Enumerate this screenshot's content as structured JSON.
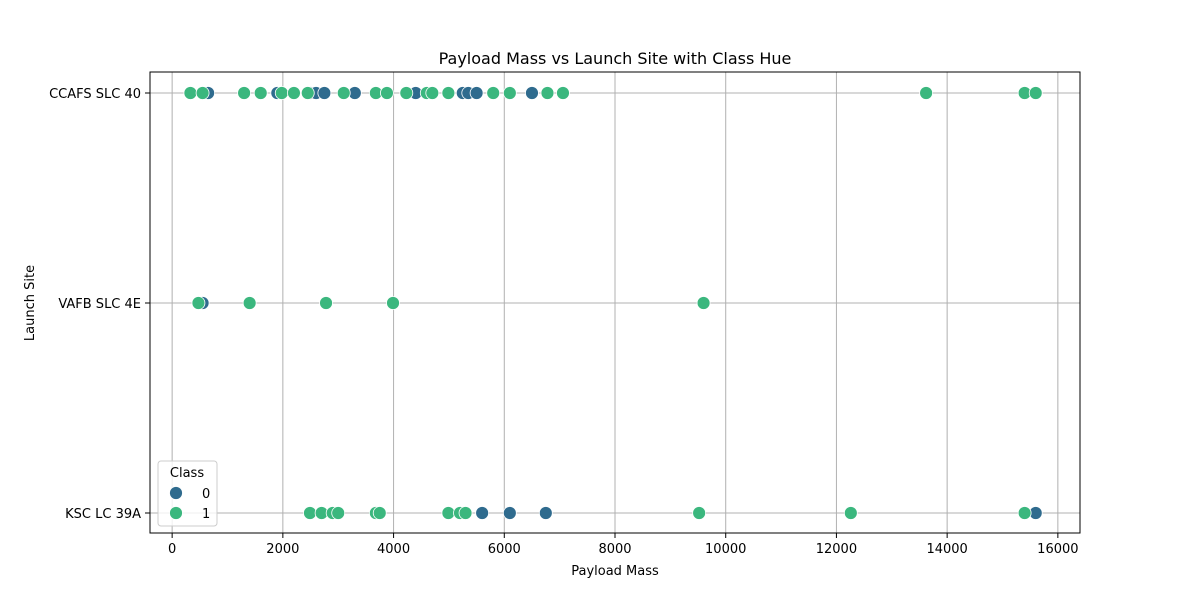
{
  "chart_data": {
    "type": "scatter",
    "title": "Payload Mass vs Launch Site with Class Hue",
    "xlabel": "Payload Mass",
    "ylabel": "Launch Site",
    "xlim": [
      -400,
      16400
    ],
    "x_ticks": [
      0,
      2000,
      4000,
      6000,
      8000,
      10000,
      12000,
      14000,
      16000
    ],
    "x_tick_labels": [
      "0",
      "2000",
      "4000",
      "6000",
      "8000",
      "10000",
      "12000",
      "14000",
      "16000"
    ],
    "categories": [
      "CCAFS SLC 40",
      "VAFB SLC 4E",
      "KSC LC 39A"
    ],
    "grid": true,
    "legend": {
      "title": "Class",
      "placement": "lower-left",
      "entries": [
        {
          "label": "0",
          "color": "#2f6b8e"
        },
        {
          "label": "1",
          "color": "#3bb77e"
        }
      ]
    },
    "series": [
      {
        "name": "0",
        "color": "#2f6b8e",
        "points": [
          {
            "x": 650,
            "site": "CCAFS SLC 40"
          },
          {
            "x": 1900,
            "site": "CCAFS SLC 40"
          },
          {
            "x": 2500,
            "site": "CCAFS SLC 40"
          },
          {
            "x": 2600,
            "site": "CCAFS SLC 40"
          },
          {
            "x": 2750,
            "site": "CCAFS SLC 40"
          },
          {
            "x": 3300,
            "site": "CCAFS SLC 40"
          },
          {
            "x": 4400,
            "site": "CCAFS SLC 40"
          },
          {
            "x": 5250,
            "site": "CCAFS SLC 40"
          },
          {
            "x": 5350,
            "site": "CCAFS SLC 40"
          },
          {
            "x": 5500,
            "site": "CCAFS SLC 40"
          },
          {
            "x": 6500,
            "site": "CCAFS SLC 40"
          },
          {
            "x": 550,
            "site": "VAFB SLC 4E"
          },
          {
            "x": 5600,
            "site": "KSC LC 39A"
          },
          {
            "x": 6100,
            "site": "KSC LC 39A"
          },
          {
            "x": 6750,
            "site": "KSC LC 39A"
          },
          {
            "x": 15600,
            "site": "KSC LC 39A"
          }
        ]
      },
      {
        "name": "1",
        "color": "#3bb77e",
        "points": [
          {
            "x": 330,
            "site": "CCAFS SLC 40"
          },
          {
            "x": 550,
            "site": "CCAFS SLC 40"
          },
          {
            "x": 1300,
            "site": "CCAFS SLC 40"
          },
          {
            "x": 1600,
            "site": "CCAFS SLC 40"
          },
          {
            "x": 1980,
            "site": "CCAFS SLC 40"
          },
          {
            "x": 2200,
            "site": "CCAFS SLC 40"
          },
          {
            "x": 2450,
            "site": "CCAFS SLC 40"
          },
          {
            "x": 3100,
            "site": "CCAFS SLC 40"
          },
          {
            "x": 3680,
            "site": "CCAFS SLC 40"
          },
          {
            "x": 3880,
            "site": "CCAFS SLC 40"
          },
          {
            "x": 4230,
            "site": "CCAFS SLC 40"
          },
          {
            "x": 4600,
            "site": "CCAFS SLC 40"
          },
          {
            "x": 4700,
            "site": "CCAFS SLC 40"
          },
          {
            "x": 4990,
            "site": "CCAFS SLC 40"
          },
          {
            "x": 5800,
            "site": "CCAFS SLC 40"
          },
          {
            "x": 6100,
            "site": "CCAFS SLC 40"
          },
          {
            "x": 6780,
            "site": "CCAFS SLC 40"
          },
          {
            "x": 7060,
            "site": "CCAFS SLC 40"
          },
          {
            "x": 13620,
            "site": "CCAFS SLC 40"
          },
          {
            "x": 15400,
            "site": "CCAFS SLC 40"
          },
          {
            "x": 15600,
            "site": "CCAFS SLC 40"
          },
          {
            "x": 475,
            "site": "VAFB SLC 4E"
          },
          {
            "x": 1400,
            "site": "VAFB SLC 4E"
          },
          {
            "x": 2780,
            "site": "VAFB SLC 4E"
          },
          {
            "x": 3990,
            "site": "VAFB SLC 4E"
          },
          {
            "x": 9600,
            "site": "VAFB SLC 4E"
          },
          {
            "x": 2490,
            "site": "KSC LC 39A"
          },
          {
            "x": 2700,
            "site": "KSC LC 39A"
          },
          {
            "x": 2900,
            "site": "KSC LC 39A"
          },
          {
            "x": 3000,
            "site": "KSC LC 39A"
          },
          {
            "x": 3680,
            "site": "KSC LC 39A"
          },
          {
            "x": 3750,
            "site": "KSC LC 39A"
          },
          {
            "x": 4990,
            "site": "KSC LC 39A"
          },
          {
            "x": 5200,
            "site": "KSC LC 39A"
          },
          {
            "x": 5300,
            "site": "KSC LC 39A"
          },
          {
            "x": 9520,
            "site": "KSC LC 39A"
          },
          {
            "x": 12260,
            "site": "KSC LC 39A"
          },
          {
            "x": 15400,
            "site": "KSC LC 39A"
          }
        ]
      }
    ]
  }
}
